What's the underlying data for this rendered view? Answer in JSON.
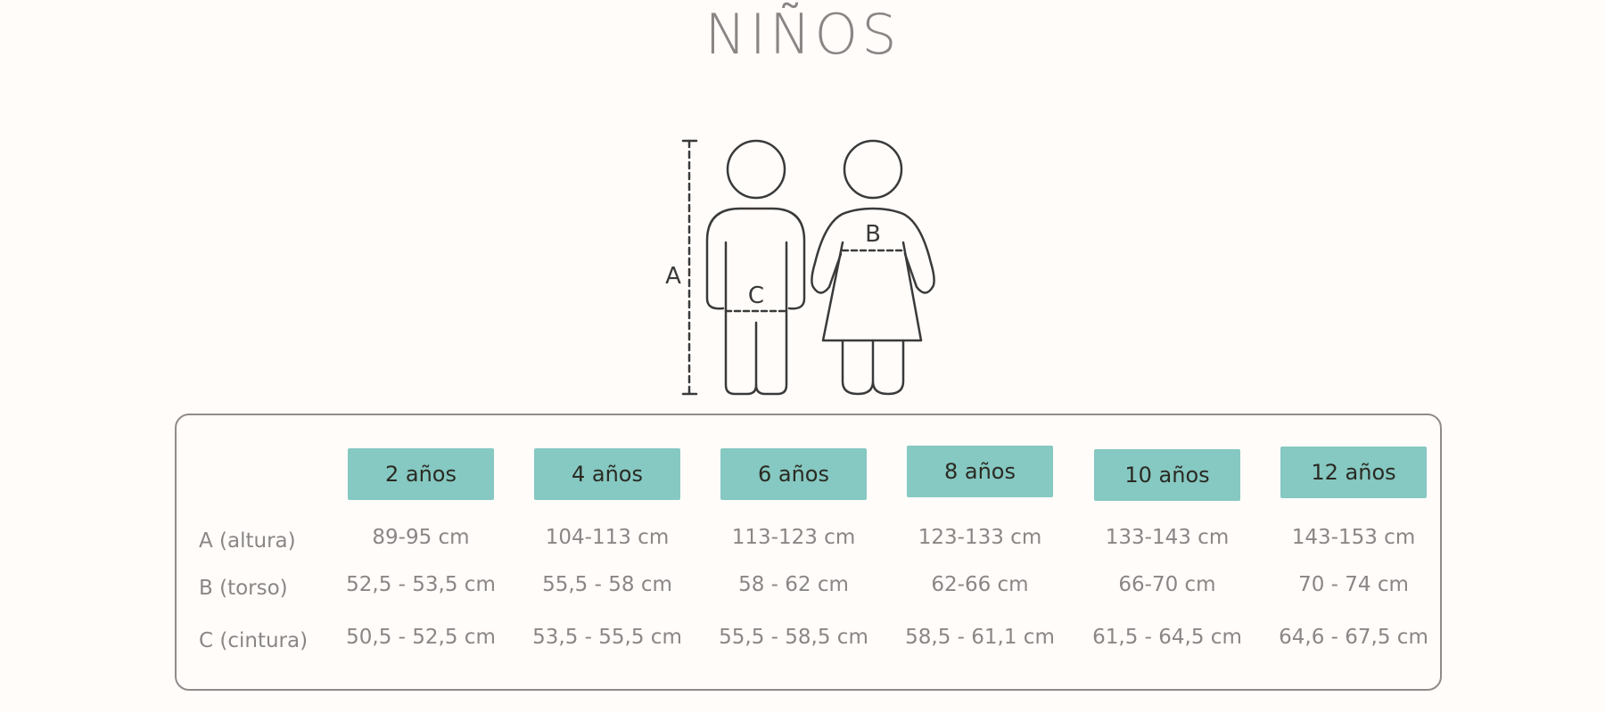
{
  "title": "NIÑOS",
  "figure": {
    "label_a": "A",
    "label_b": "B",
    "label_c": "C"
  },
  "table": {
    "headers": [
      "2 años",
      "4 años",
      "6 años",
      "8 años",
      "10 años",
      "12 años"
    ],
    "header_color": "#86c8c2",
    "rows": [
      {
        "label": "A (altura)",
        "values": [
          "89-95 cm",
          "104-113 cm",
          "113-123 cm",
          "123-133 cm",
          "133-143 cm",
          "143-153 cm"
        ]
      },
      {
        "label": "B (torso)",
        "values": [
          "52,5 - 53,5 cm",
          "55,5 - 58 cm",
          "58 - 62 cm",
          "62-66 cm",
          "66-70 cm",
          "70 - 74 cm"
        ]
      },
      {
        "label": "C (cintura)",
        "values": [
          "50,5 - 52,5 cm",
          "53,5 - 55,5 cm",
          "55,5 - 58,5 cm",
          "58,5 - 61,1 cm",
          "61,5 - 64,5 cm",
          "64,6 - 67,5 cm"
        ]
      }
    ]
  }
}
